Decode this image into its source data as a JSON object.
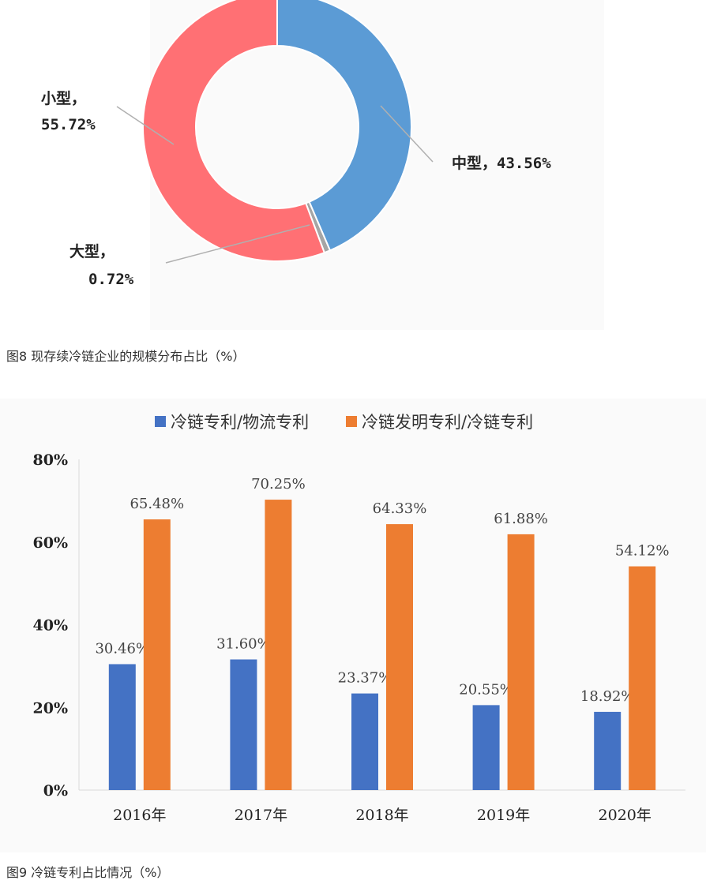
{
  "chart_data": [
    {
      "type": "pie",
      "categories": [
        "中型",
        "大型",
        "小型"
      ],
      "values": [
        43.56,
        0.72,
        55.72
      ],
      "value_labels": [
        "43.56%",
        "0.72%",
        "55.72%"
      ],
      "colors": [
        "#5b9bd5",
        "#a5a5a5",
        "#ff7074"
      ],
      "donut": true,
      "title": ""
    },
    {
      "type": "bar",
      "categories": [
        "2016年",
        "2017年",
        "2018年",
        "2019年",
        "2020年"
      ],
      "series": [
        {
          "name": "冷链专利/物流专利",
          "values": [
            30.46,
            31.6,
            23.37,
            20.55,
            18.92
          ],
          "labels": [
            "30.46%",
            "31.60%",
            "23.37%",
            "20.55%",
            "18.92%"
          ],
          "color": "#4472c4"
        },
        {
          "name": "冷链发明专利/冷链专利",
          "values": [
            65.48,
            70.25,
            64.33,
            61.88,
            54.12
          ],
          "labels": [
            "65.48%",
            "70.25%",
            "64.33%",
            "61.88%",
            "54.12%"
          ],
          "color": "#ed7d31"
        }
      ],
      "yticks": [
        "0%",
        "20%",
        "40%",
        "60%",
        "80%"
      ],
      "ylim": [
        0,
        80
      ],
      "legend": "top",
      "grid": false,
      "title": ""
    }
  ],
  "captions": {
    "fig8": "图8 现存续冷链企业的规模分布占比（%）",
    "fig9": "图9 冷链专利占比情况（%）"
  },
  "pie_text": {
    "medium": "中型，43.56%",
    "large_name": "大型，",
    "large_value": "0.72%",
    "small_name": "小型，",
    "small_value": "55.72%"
  }
}
